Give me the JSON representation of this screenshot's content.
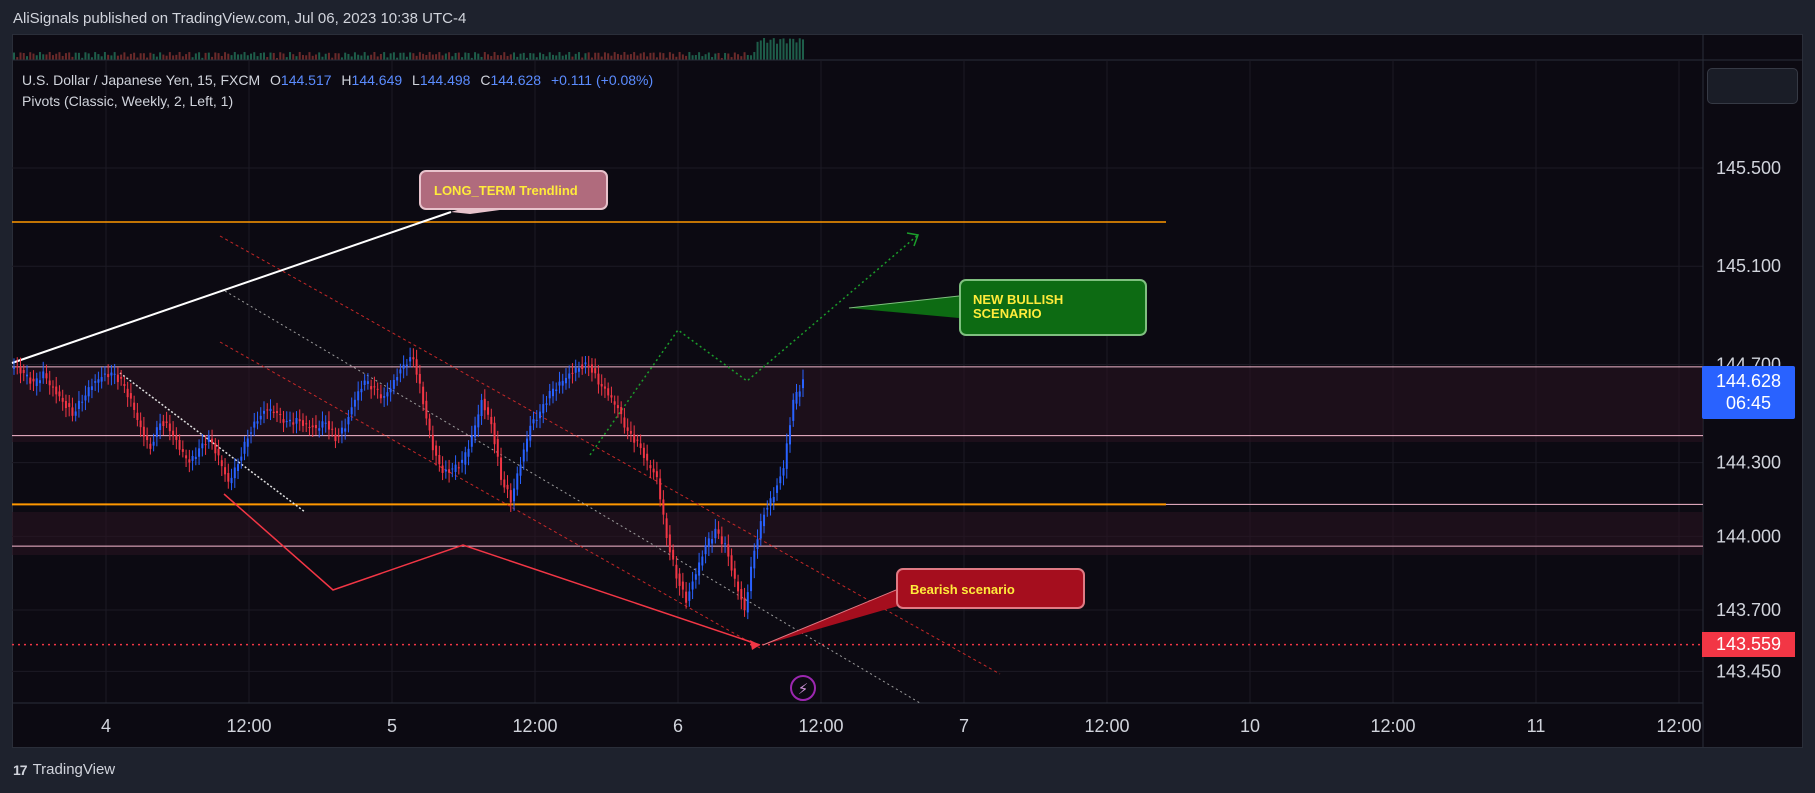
{
  "header": {
    "publisher": "AliSignals published on TradingView.com, Jul 06, 2023 10:38 UTC-4"
  },
  "legend": {
    "symbol": "U.S. Dollar / Japanese Yen, 15, FXCM",
    "o_label": "O",
    "o_value": "144.517",
    "h_label": "H",
    "h_value": "144.649",
    "l_label": "L",
    "l_value": "144.498",
    "c_label": "C",
    "c_value": "144.628",
    "change": "+0.111 (+0.08%)",
    "indicator": "Pivots (Classic, Weekly, 2, Left, 1)"
  },
  "annotations": {
    "long_term": "LONG_TERM Trendlind",
    "bullish_line1": "NEW BULLISH",
    "bullish_line2": "SCENARIO",
    "bearish": "Bearish scenario"
  },
  "price_tags": {
    "current_price": "144.628",
    "countdown": "06:45",
    "red_level": "143.559"
  },
  "footer": {
    "brand": "TradingView",
    "logo_text": "17"
  },
  "colors": {
    "background": "#0c0a12",
    "up_candle": "#2962ff",
    "down_candle": "#f23645",
    "pivot_orange": "#ff9800",
    "pivot_pink": "#f8bbd0",
    "bullish_green": "#1b7a1b",
    "bearish_red": "#a50e1e",
    "long_term_box": "#b06b7d"
  },
  "chart_data": {
    "type": "candlestick",
    "symbol": "USDJPY",
    "interval": "15",
    "y_ticks": [
      145.5,
      145.1,
      144.7,
      144.3,
      144.0,
      143.7,
      143.45
    ],
    "y_tick_labels": [
      "145.500",
      "145.100",
      "144.700",
      "144.300",
      "144.000",
      "143.700",
      "143.450"
    ],
    "x_tick_labels": [
      "4",
      "12:00",
      "5",
      "12:00",
      "6",
      "12:00",
      "7",
      "12:00",
      "10",
      "12:00",
      "11",
      "12:00"
    ],
    "pivot_levels": [
      145.28,
      144.69,
      144.41,
      144.13,
      143.96
    ],
    "red_level": 143.559,
    "current_price": 144.628,
    "price_path": [
      144.69,
      144.66,
      144.62,
      144.66,
      144.6,
      144.55,
      144.5,
      144.56,
      144.62,
      144.65,
      144.66,
      144.63,
      144.55,
      144.44,
      144.36,
      144.47,
      144.44,
      144.36,
      144.3,
      144.35,
      144.4,
      144.32,
      144.22,
      144.3,
      144.41,
      144.48,
      144.52,
      144.5,
      144.46,
      144.47,
      144.45,
      144.44,
      144.47,
      144.4,
      144.45,
      144.56,
      144.63,
      144.6,
      144.56,
      144.63,
      144.7,
      144.73,
      144.55,
      144.36,
      144.26,
      144.27,
      144.3,
      144.4,
      144.55,
      144.46,
      144.24,
      144.15,
      144.3,
      144.45,
      144.5,
      144.58,
      144.62,
      144.66,
      144.69,
      144.7,
      144.63,
      144.58,
      144.52,
      144.42,
      144.38,
      144.3,
      144.24,
      144.0,
      143.84,
      143.74,
      143.85,
      143.96,
      144.02,
      143.96,
      143.82,
      143.7,
      143.95,
      144.1,
      144.17,
      144.28,
      144.55,
      144.628
    ]
  }
}
